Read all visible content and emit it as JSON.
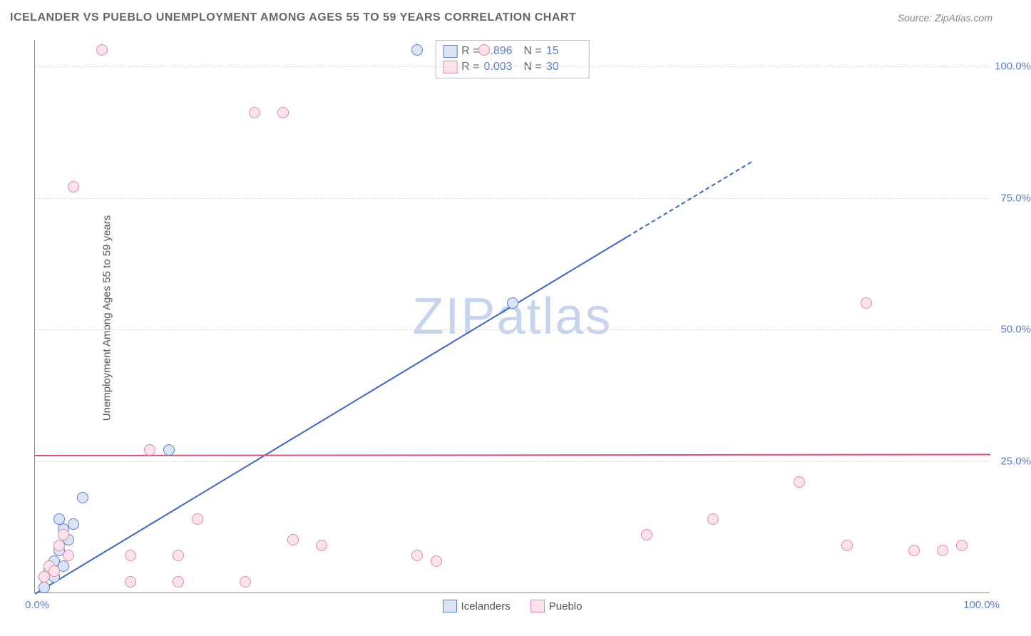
{
  "title": "ICELANDER VS PUEBLO UNEMPLOYMENT AMONG AGES 55 TO 59 YEARS CORRELATION CHART",
  "source": "Source: ZipAtlas.com",
  "ylabel": "Unemployment Among Ages 55 to 59 years",
  "watermark_text": "ZIPatlas",
  "watermark_color": "#c7d4ee",
  "chart": {
    "type": "scatter",
    "xlim": [
      0,
      100
    ],
    "ylim": [
      0,
      105
    ],
    "gridlines_y_dashed_color": "#dddddd",
    "axis_color": "#888888",
    "yticks": [
      {
        "v": 25,
        "label": "25.0%"
      },
      {
        "v": 50,
        "label": "50.0%"
      },
      {
        "v": 75,
        "label": "75.0%"
      },
      {
        "v": 100,
        "label": "100.0%"
      }
    ],
    "xticks": [
      {
        "v": 0,
        "label": "0.0%",
        "pos": "left"
      },
      {
        "v": 100,
        "label": "100.0%",
        "pos": "right"
      }
    ],
    "series": [
      {
        "name": "Icelanders",
        "fill": "#d9e5f7",
        "stroke": "#5b7bd5",
        "R": "0.896",
        "N": "15",
        "trend": {
          "x1": 0,
          "y1": 0,
          "x2": 75,
          "y2": 82,
          "color": "#3a66cc",
          "width": 2,
          "dash_after_x": 62
        },
        "points": [
          {
            "x": 1,
            "y": 3
          },
          {
            "x": 1.5,
            "y": 4.5
          },
          {
            "x": 2,
            "y": 6
          },
          {
            "x": 2,
            "y": 3
          },
          {
            "x": 2.5,
            "y": 8
          },
          {
            "x": 3,
            "y": 5
          },
          {
            "x": 3,
            "y": 12
          },
          {
            "x": 3.5,
            "y": 10
          },
          {
            "x": 4,
            "y": 13
          },
          {
            "x": 5,
            "y": 18
          },
          {
            "x": 2.5,
            "y": 14
          },
          {
            "x": 14,
            "y": 27
          },
          {
            "x": 50,
            "y": 55
          },
          {
            "x": 40,
            "y": 103
          },
          {
            "x": 1,
            "y": 1
          }
        ]
      },
      {
        "name": "Pueblo",
        "fill": "#fbe3ea",
        "stroke": "#e48aa4",
        "R": "0.003",
        "N": "30",
        "trend": {
          "x1": 0,
          "y1": 26.3,
          "x2": 100,
          "y2": 26.5,
          "color": "#e04d7a",
          "width": 2
        },
        "points": [
          {
            "x": 1,
            "y": 3
          },
          {
            "x": 1.5,
            "y": 5
          },
          {
            "x": 2,
            "y": 4
          },
          {
            "x": 2.5,
            "y": 9
          },
          {
            "x": 3,
            "y": 11
          },
          {
            "x": 3.5,
            "y": 7
          },
          {
            "x": 4,
            "y": 77
          },
          {
            "x": 7,
            "y": 103
          },
          {
            "x": 10,
            "y": 7
          },
          {
            "x": 10,
            "y": 2
          },
          {
            "x": 12,
            "y": 27
          },
          {
            "x": 15,
            "y": 2
          },
          {
            "x": 15,
            "y": 7
          },
          {
            "x": 17,
            "y": 14
          },
          {
            "x": 22,
            "y": 2
          },
          {
            "x": 23,
            "y": 91
          },
          {
            "x": 26,
            "y": 91
          },
          {
            "x": 27,
            "y": 10
          },
          {
            "x": 30,
            "y": 9
          },
          {
            "x": 40,
            "y": 7
          },
          {
            "x": 42,
            "y": 6
          },
          {
            "x": 47,
            "y": 103
          },
          {
            "x": 64,
            "y": 11
          },
          {
            "x": 71,
            "y": 14
          },
          {
            "x": 80,
            "y": 21
          },
          {
            "x": 85,
            "y": 9
          },
          {
            "x": 87,
            "y": 55
          },
          {
            "x": 92,
            "y": 8
          },
          {
            "x": 95,
            "y": 8
          },
          {
            "x": 97,
            "y": 9
          }
        ]
      }
    ],
    "legend_bottom": [
      {
        "label": "Icelanders",
        "fill": "#d9e5f7",
        "stroke": "#5b7bd5"
      },
      {
        "label": "Pueblo",
        "fill": "#fbe3ea",
        "stroke": "#e48aa4"
      }
    ]
  }
}
